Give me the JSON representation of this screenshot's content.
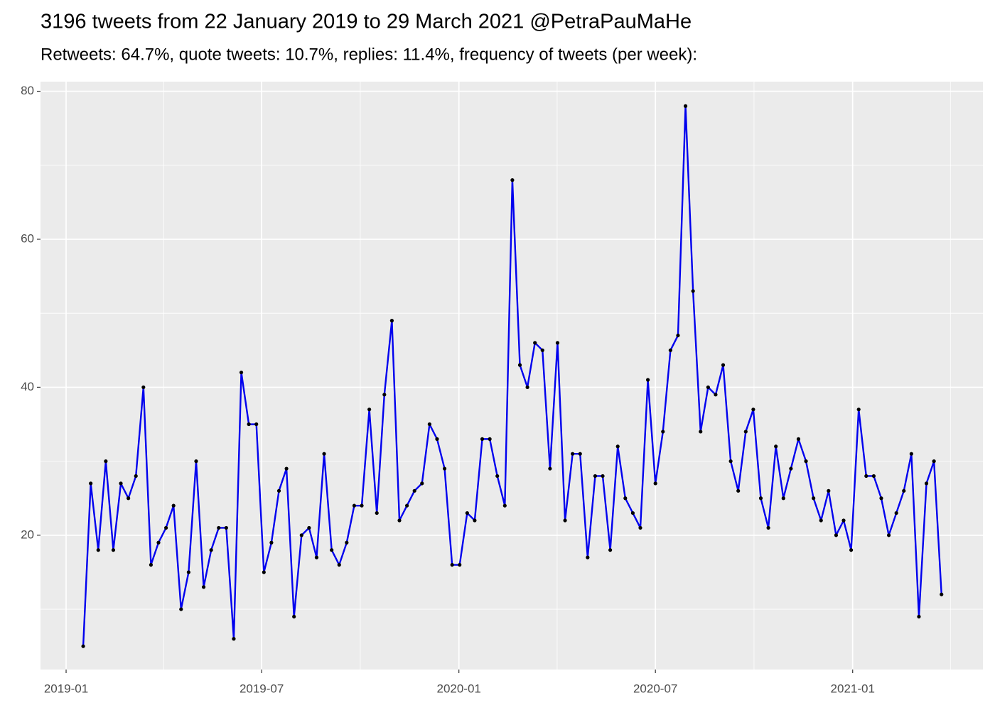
{
  "chart_data": {
    "type": "line",
    "title": "3196 tweets from 22 January 2019 to 29 March 2021 @PetraPauMaHe",
    "subtitle": "Retweets: 64.7%, quote tweets: 10.7%, replies: 11.4%, frequency of tweets (per week):",
    "values": [
      5,
      27,
      18,
      30,
      18,
      27,
      25,
      28,
      40,
      16,
      19,
      21,
      24,
      10,
      15,
      30,
      13,
      18,
      21,
      21,
      6,
      42,
      35,
      35,
      15,
      19,
      26,
      29,
      9,
      20,
      21,
      17,
      31,
      18,
      16,
      19,
      24,
      24,
      37,
      23,
      39,
      49,
      22,
      24,
      26,
      27,
      35,
      33,
      29,
      16,
      16,
      23,
      22,
      33,
      33,
      28,
      24,
      68,
      43,
      40,
      46,
      45,
      29,
      46,
      22,
      31,
      31,
      17,
      28,
      28,
      18,
      32,
      25,
      23,
      21,
      41,
      27,
      34,
      45,
      47,
      78,
      53,
      34,
      40,
      39,
      43,
      30,
      26,
      34,
      37,
      25,
      21,
      32,
      25,
      29,
      33,
      30,
      25,
      22,
      26,
      20,
      22,
      18,
      37,
      28,
      28,
      25,
      20,
      23,
      26,
      31,
      9,
      27,
      30,
      12
    ],
    "color": "#0000ee",
    "point_color": "#000000",
    "xlim": [
      -5.67,
      119.5
    ],
    "xticks": [
      {
        "value": -2.27,
        "label": "2019-01"
      },
      {
        "value": 23.7,
        "label": "2019-07"
      },
      {
        "value": 49.9,
        "label": "2020-01"
      },
      {
        "value": 76.0,
        "label": "2020-07"
      },
      {
        "value": 102.2,
        "label": "2021-01"
      }
    ],
    "ylim": [
      1.85,
      81.3
    ],
    "yticks": [
      20,
      40,
      60,
      80
    ],
    "grid": true,
    "minor_grid": true
  }
}
